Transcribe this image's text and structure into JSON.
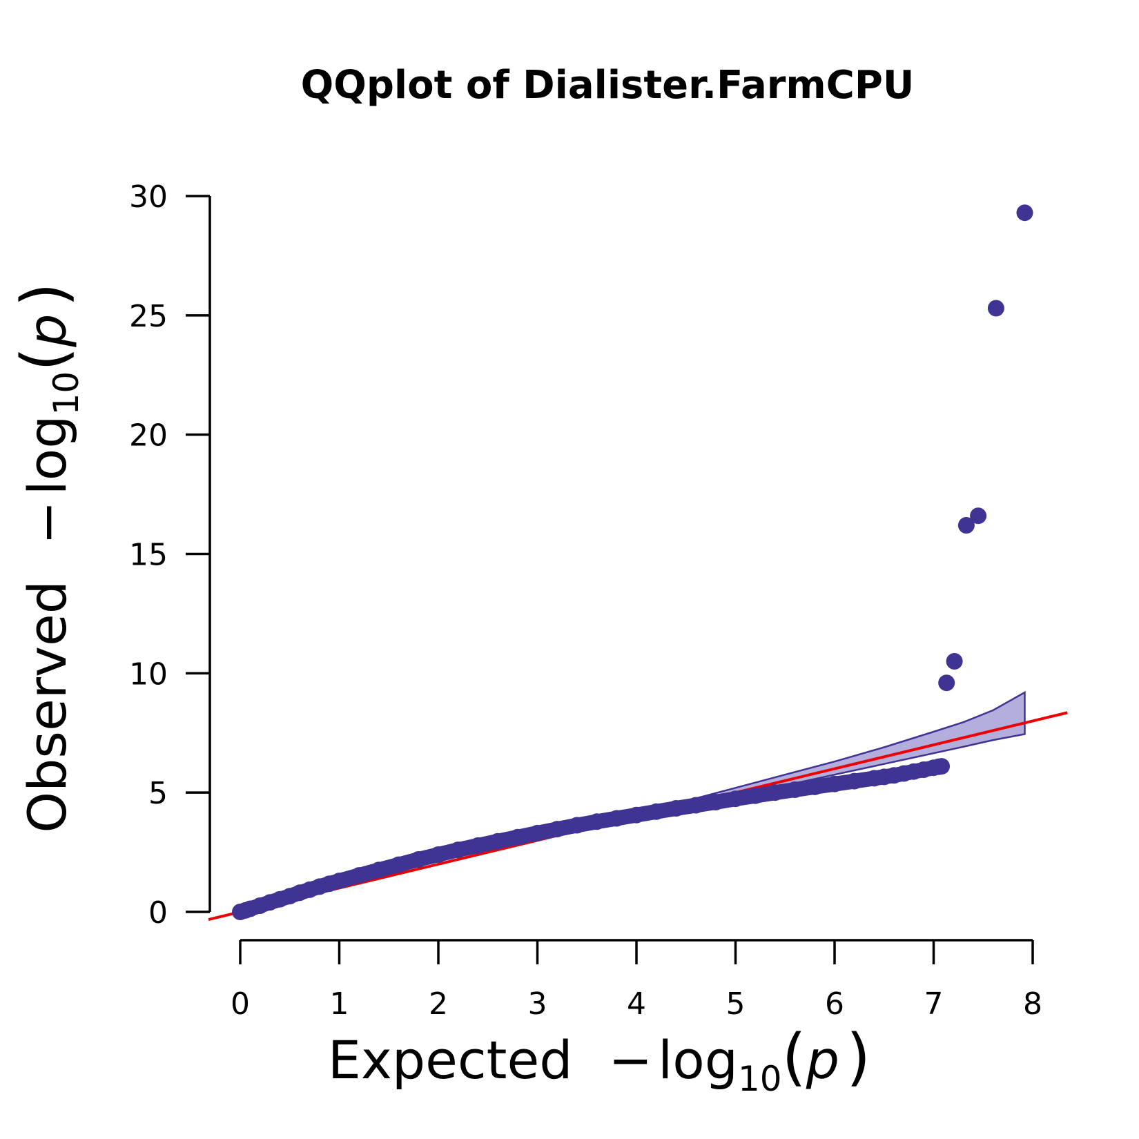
{
  "chart_data": {
    "type": "scatter",
    "title": "QQplot of Dialister.FarmCPU",
    "xlabel": {
      "prefix": "Expected",
      "minus": "−",
      "log": "log",
      "sub": "10",
      "open": "(",
      "var": "p",
      "close": ")"
    },
    "ylabel": {
      "prefix": "Observed",
      "minus": "−",
      "log": "log",
      "sub": "10",
      "open": "(",
      "var": "p",
      "close": ")"
    },
    "xlim": [
      0,
      8
    ],
    "ylim": [
      0,
      30
    ],
    "x_ticks": [
      "0",
      "1",
      "2",
      "3",
      "4",
      "5",
      "6",
      "7",
      "8"
    ],
    "y_ticks": [
      "0",
      "5",
      "10",
      "15",
      "20",
      "25",
      "30"
    ],
    "colors": {
      "points": "#3f3393",
      "band_fill": "#b3aedb",
      "band_line": "#3f3393",
      "reference_line": "#ee0000"
    },
    "reference_line": {
      "slope": 1,
      "intercept": 0
    },
    "confidence_band": {
      "x": [
        3.6,
        4.0,
        4.5,
        5.0,
        5.5,
        6.0,
        6.5,
        7.0,
        7.3,
        7.6,
        7.92
      ],
      "upper": [
        3.65,
        4.1,
        4.65,
        5.2,
        5.75,
        6.3,
        6.9,
        7.55,
        7.95,
        8.45,
        9.2
      ],
      "lower": [
        3.55,
        3.9,
        4.38,
        4.85,
        5.3,
        5.75,
        6.2,
        6.65,
        6.92,
        7.2,
        7.45
      ]
    },
    "series": [
      {
        "x": [
          0.0,
          0.05,
          0.1,
          0.2,
          0.3,
          0.4,
          0.5,
          0.6,
          0.7,
          0.8,
          0.9,
          1.0,
          1.2,
          1.4,
          1.6,
          1.8,
          2.0,
          2.2,
          2.4,
          2.6,
          2.8,
          3.0,
          3.2,
          3.4,
          3.6,
          3.8,
          4.0,
          4.2,
          4.4,
          4.6,
          4.8,
          5.0,
          5.2,
          5.4,
          5.6,
          5.8,
          6.0,
          6.2,
          6.4,
          6.5,
          6.6,
          6.7,
          6.8,
          6.9,
          7.0,
          7.05,
          7.08,
          7.13,
          7.21,
          7.33,
          7.45,
          7.63,
          7.92
        ],
        "y": [
          0.0,
          0.06,
          0.13,
          0.26,
          0.4,
          0.53,
          0.66,
          0.8,
          0.93,
          1.06,
          1.18,
          1.3,
          1.53,
          1.76,
          1.98,
          2.2,
          2.4,
          2.6,
          2.78,
          2.96,
          3.13,
          3.3,
          3.47,
          3.63,
          3.78,
          3.92,
          4.06,
          4.2,
          4.34,
          4.47,
          4.6,
          4.74,
          4.87,
          5.0,
          5.12,
          5.24,
          5.36,
          5.48,
          5.6,
          5.66,
          5.72,
          5.8,
          5.88,
          5.96,
          6.04,
          6.08,
          6.1,
          9.6,
          10.5,
          16.2,
          16.6,
          25.3,
          29.3
        ]
      }
    ]
  }
}
